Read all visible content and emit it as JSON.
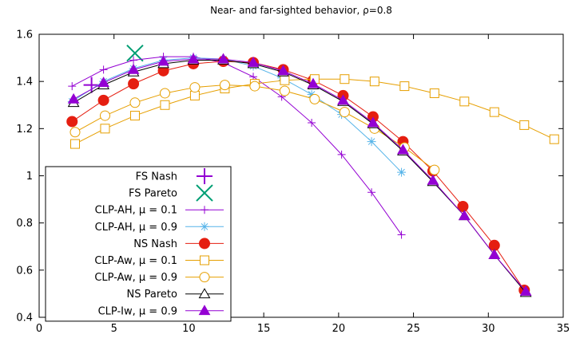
{
  "chart_data": {
    "type": "line",
    "title": "Near- and far-sighted behavior, ρ=0.8",
    "xlabel": "",
    "ylabel": "",
    "xlim": [
      0,
      35
    ],
    "ylim": [
      0.4,
      1.6
    ],
    "xticks": [
      "0",
      "5",
      "10",
      "15",
      "20",
      "25",
      "30",
      "35"
    ],
    "yticks": [
      "0.4",
      "0.6",
      "0.8",
      "1",
      "1.2",
      "1.4",
      "1.6"
    ],
    "grid": false,
    "legend_position": "bottom-left",
    "series": [
      {
        "name": "FS Nash",
        "color": "#9400d3",
        "marker": "plus-large",
        "line": false,
        "x": [
          3.5
        ],
        "y": [
          1.385
        ]
      },
      {
        "name": "FS Pareto",
        "color": "#009e73",
        "marker": "cross-large",
        "line": false,
        "x": [
          6.4
        ],
        "y": [
          1.52
        ]
      },
      {
        "name": "CLP-AH, μ = 0.1",
        "color": "#9400d3",
        "marker": "plus",
        "line": true,
        "x": [
          2.2,
          4.3,
          6.3,
          8.3,
          10.3,
          12.3,
          14.3,
          16.2,
          18.2,
          20.2,
          22.2,
          24.2
        ],
        "y": [
          1.38,
          1.45,
          1.49,
          1.505,
          1.505,
          1.48,
          1.42,
          1.335,
          1.225,
          1.09,
          0.93,
          0.75
        ]
      },
      {
        "name": "CLP-AH, μ = 0.9",
        "color": "#56b4e9",
        "marker": "asterisk",
        "line": true,
        "x": [
          2.2,
          4.3,
          6.3,
          8.3,
          10.3,
          12.3,
          14.3,
          16.2,
          18.2,
          20.2,
          22.2,
          24.2
        ],
        "y": [
          1.315,
          1.4,
          1.455,
          1.49,
          1.5,
          1.495,
          1.465,
          1.415,
          1.345,
          1.26,
          1.145,
          1.015
        ]
      },
      {
        "name": "NS Nash",
        "color": "#e51e10",
        "marker": "circle-filled",
        "line": true,
        "x": [
          2.2,
          4.3,
          6.3,
          8.3,
          10.3,
          12.3,
          14.3,
          16.3,
          18.3,
          20.3,
          22.3,
          24.3,
          26.3,
          28.3,
          30.4,
          32.4
        ],
        "y": [
          1.23,
          1.32,
          1.39,
          1.445,
          1.475,
          1.485,
          1.48,
          1.45,
          1.405,
          1.34,
          1.25,
          1.145,
          1.02,
          0.87,
          0.705,
          0.515
        ]
      },
      {
        "name": "CLP-Aw, μ = 0.1",
        "color": "#e69f00",
        "marker": "square-open",
        "line": true,
        "x": [
          2.4,
          4.4,
          6.4,
          8.4,
          10.4,
          12.4,
          14.4,
          16.4,
          18.4,
          20.4,
          22.4,
          24.4,
          26.4,
          28.4,
          30.4,
          32.4,
          34.4
        ],
        "y": [
          1.135,
          1.2,
          1.255,
          1.3,
          1.34,
          1.37,
          1.39,
          1.405,
          1.41,
          1.41,
          1.4,
          1.38,
          1.35,
          1.315,
          1.27,
          1.215,
          1.155
        ]
      },
      {
        "name": "CLP-Aw, μ = 0.9",
        "color": "#e69f00",
        "marker": "circle-open",
        "line": true,
        "x": [
          2.4,
          4.4,
          6.4,
          8.4,
          10.4,
          12.4,
          14.4,
          16.4,
          18.4,
          20.4,
          22.4,
          24.4,
          26.4
        ],
        "y": [
          1.185,
          1.255,
          1.31,
          1.35,
          1.375,
          1.385,
          1.38,
          1.36,
          1.325,
          1.27,
          1.2,
          1.12,
          1.025
        ]
      },
      {
        "name": "NS Pareto",
        "color": "#000000",
        "marker": "triangle-open",
        "line": true,
        "x": [
          2.3,
          4.3,
          6.3,
          8.3,
          10.3,
          12.3,
          14.3,
          16.3,
          18.3,
          20.3,
          22.3,
          24.3,
          26.3,
          28.4,
          30.4,
          32.5
        ],
        "y": [
          1.31,
          1.385,
          1.44,
          1.475,
          1.49,
          1.49,
          1.475,
          1.44,
          1.385,
          1.315,
          1.22,
          1.105,
          0.975,
          0.83,
          0.665,
          0.505
        ]
      },
      {
        "name": "CLP-Iw, μ = 0.9",
        "color": "#9400d3",
        "marker": "triangle-filled",
        "line": true,
        "x": [
          2.3,
          4.3,
          6.3,
          8.3,
          10.3,
          12.3,
          14.3,
          16.3,
          18.3,
          20.3,
          22.3,
          24.3,
          26.3,
          28.4,
          30.4,
          32.5
        ],
        "y": [
          1.325,
          1.395,
          1.45,
          1.485,
          1.495,
          1.495,
          1.48,
          1.445,
          1.39,
          1.32,
          1.225,
          1.11,
          0.98,
          0.83,
          0.665,
          0.51
        ]
      }
    ]
  }
}
